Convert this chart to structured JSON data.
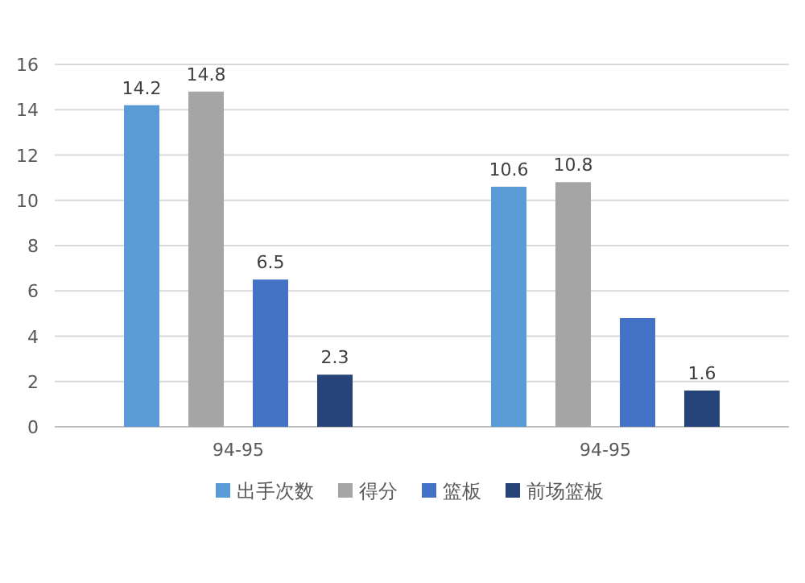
{
  "chart_data": {
    "type": "bar",
    "categories": [
      "94-95",
      "94-95"
    ],
    "series": [
      {
        "name": "出手次数",
        "color": "#5b9bd5",
        "values": [
          14.2,
          10.6
        ],
        "value_labels": [
          "14.2",
          "10.6"
        ]
      },
      {
        "name": "得分",
        "color": "#a5a5a5",
        "values": [
          14.8,
          10.8
        ],
        "value_labels": [
          "14.8",
          "10.8"
        ]
      },
      {
        "name": "篮板",
        "color": "#4472c4",
        "values": [
          6.5,
          4.8
        ],
        "value_labels": [
          "6.5",
          null
        ]
      },
      {
        "name": "前场篮板",
        "color": "#264478",
        "values": [
          2.3,
          1.6
        ],
        "value_labels": [
          "2.3",
          "1.6"
        ]
      }
    ],
    "ylim": [
      0,
      16
    ],
    "yticks": [
      0,
      2,
      4,
      6,
      8,
      10,
      12,
      14,
      16
    ],
    "grid": "y",
    "legend": "bottom"
  }
}
